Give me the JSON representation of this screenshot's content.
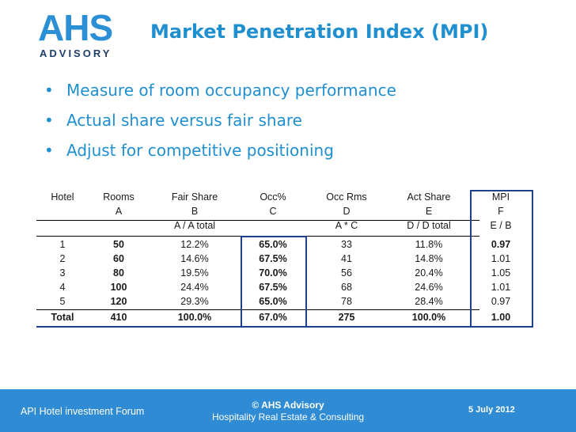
{
  "logo": {
    "main": "AHS",
    "sub": "ADVISORY"
  },
  "title": "Market Penetration Index (MPI)",
  "bullets": [
    "Measure of room occupancy performance",
    "Actual share versus fair share",
    "Adjust for competitive positioning"
  ],
  "table": {
    "headers": [
      "Hotel",
      "Rooms",
      "Fair Share",
      "Occ%",
      "Occ Rms",
      "Act Share",
      "MPI"
    ],
    "letters": [
      "",
      "A",
      "B",
      "C",
      "D",
      "E",
      "F"
    ],
    "formulas": [
      "",
      "",
      "A / A total",
      "",
      "A * C",
      "D / D total",
      "E / B"
    ],
    "rows": [
      [
        "1",
        "50",
        "12.2%",
        "65.0%",
        "33",
        "11.8%",
        "0.97"
      ],
      [
        "2",
        "60",
        "14.6%",
        "67.5%",
        "41",
        "14.8%",
        "1.01"
      ],
      [
        "3",
        "80",
        "19.5%",
        "70.0%",
        "56",
        "20.4%",
        "1.05"
      ],
      [
        "4",
        "100",
        "24.4%",
        "67.5%",
        "68",
        "24.6%",
        "1.01"
      ],
      [
        "5",
        "120",
        "29.3%",
        "65.0%",
        "78",
        "28.4%",
        "0.97"
      ]
    ],
    "total": [
      "Total",
      "410",
      "100.0%",
      "67.0%",
      "275",
      "100.0%",
      "1.00"
    ]
  },
  "footer": {
    "left": "API Hotel investment Forum",
    "center_line1": "© AHS Advisory",
    "center_line2": "Hospitality Real Estate & Consulting",
    "right": "5 July 2012"
  },
  "colors": {
    "title": "#1f8fd0",
    "footer_bg": "#2e8bd4",
    "border": "#1f3f8f"
  }
}
